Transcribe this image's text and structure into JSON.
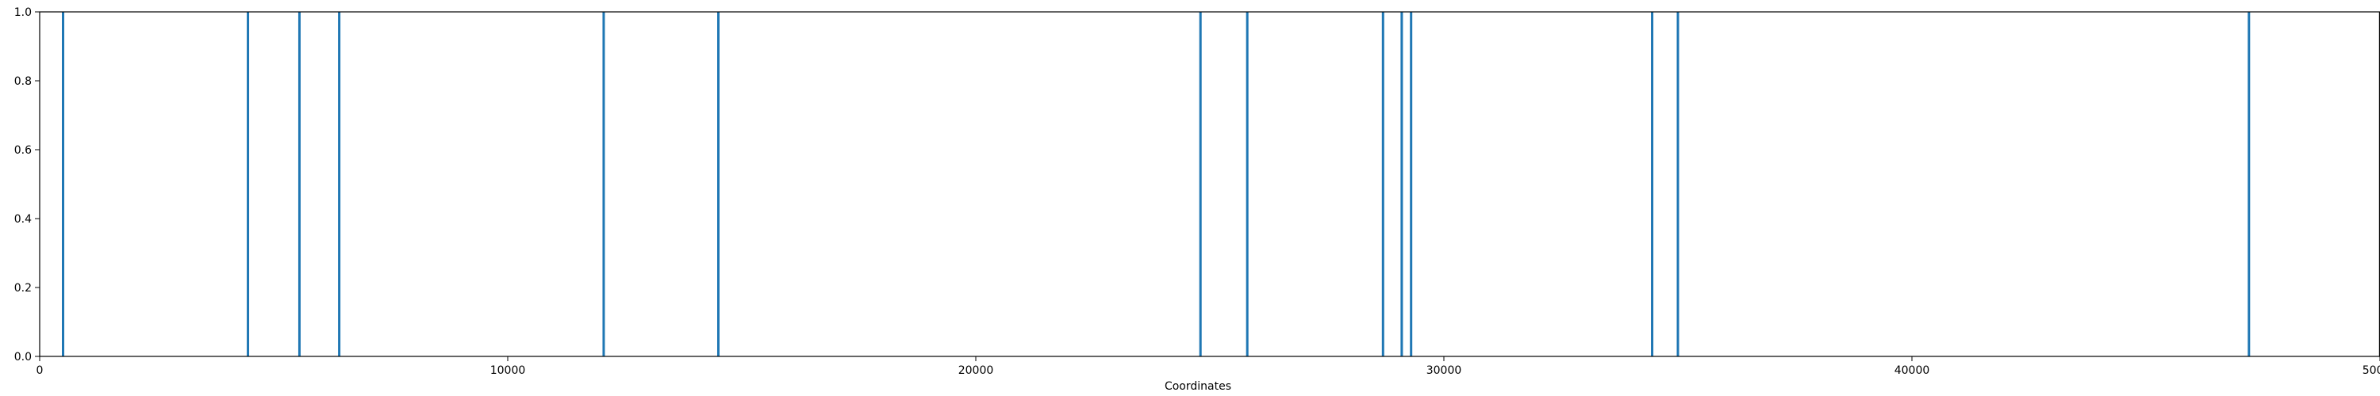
{
  "chart_data": {
    "type": "bar",
    "title": "",
    "xlabel": "Coordinates",
    "ylabel": "",
    "xlim": [
      0,
      50000
    ],
    "ylim": [
      0,
      1
    ],
    "grid": false,
    "legend": "none",
    "x_ticks": [
      0,
      10000,
      20000,
      30000,
      40000,
      50000
    ],
    "x_tick_labels": [
      "0",
      "10000",
      "20000",
      "30000",
      "40000",
      "50000"
    ],
    "y_ticks": [
      0,
      0.2,
      0.4,
      0.6,
      0.8,
      1.0
    ],
    "y_tick_labels": [
      "0.0",
      "0.2",
      "0.4",
      "0.6",
      "0.8",
      "1.0"
    ],
    "series": [
      {
        "color": "#1f77b4",
        "points": [
          {
            "x": 500,
            "y": 1
          },
          {
            "x": 4450,
            "y": 1
          },
          {
            "x": 5550,
            "y": 1
          },
          {
            "x": 6400,
            "y": 1
          },
          {
            "x": 12050,
            "y": 1
          },
          {
            "x": 14500,
            "y": 1
          },
          {
            "x": 24800,
            "y": 1
          },
          {
            "x": 25800,
            "y": 1
          },
          {
            "x": 28700,
            "y": 1
          },
          {
            "x": 29100,
            "y": 1
          },
          {
            "x": 29300,
            "y": 1
          },
          {
            "x": 34450,
            "y": 1
          },
          {
            "x": 35000,
            "y": 1
          },
          {
            "x": 47200,
            "y": 1
          }
        ]
      }
    ]
  }
}
